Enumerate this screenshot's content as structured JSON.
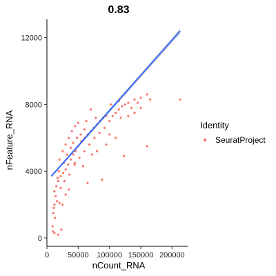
{
  "chart_data": {
    "type": "scatter",
    "title": "0.83",
    "xlabel": "nCount_RNA",
    "ylabel": "nFeature_RNA",
    "xlim": [
      0,
      225000
    ],
    "ylim": [
      -500,
      13100
    ],
    "x_ticks": [
      0,
      50000,
      100000,
      150000,
      200000
    ],
    "x_tick_labels": [
      "0",
      "50000",
      "100000",
      "150000",
      "200000"
    ],
    "y_ticks": [
      0,
      4000,
      8000,
      12000
    ],
    "y_tick_labels": [
      "0",
      "4000",
      "8000",
      "12000"
    ],
    "grid": false,
    "legend": {
      "title": "Identity",
      "placement": "right",
      "entries": [
        {
          "name": "SeuratProject",
          "color": "#F8766D"
        }
      ]
    },
    "point_color": "#F8766D",
    "fit_line": {
      "color": "#3366FF",
      "ribbon_color": "#999999",
      "points": [
        [
          7000,
          3700
        ],
        [
          213000,
          12400
        ]
      ]
    },
    "series": [
      {
        "name": "SeuratProject",
        "points": [
          [
            9000,
            700
          ],
          [
            10000,
            400
          ],
          [
            12000,
            300
          ],
          [
            18000,
            200
          ],
          [
            23000,
            500
          ],
          [
            10000,
            1500
          ],
          [
            12000,
            2000
          ],
          [
            14000,
            2500
          ],
          [
            11000,
            1800
          ],
          [
            13000,
            1200
          ],
          [
            16000,
            2200
          ],
          [
            20000,
            2100
          ],
          [
            25000,
            2000
          ],
          [
            30000,
            2600
          ],
          [
            35000,
            2900
          ],
          [
            12000,
            2800
          ],
          [
            15000,
            3100
          ],
          [
            18000,
            3400
          ],
          [
            22000,
            3700
          ],
          [
            26000,
            3900
          ],
          [
            30000,
            4100
          ],
          [
            34000,
            4400
          ],
          [
            38000,
            4700
          ],
          [
            42000,
            5000
          ],
          [
            46000,
            5200
          ],
          [
            50000,
            5500
          ],
          [
            55000,
            5800
          ],
          [
            60000,
            6000
          ],
          [
            65000,
            6200
          ],
          [
            70000,
            6400
          ],
          [
            75000,
            6600
          ],
          [
            80000,
            6800
          ],
          [
            85000,
            7000
          ],
          [
            90000,
            7200
          ],
          [
            95000,
            7300
          ],
          [
            20000,
            4700
          ],
          [
            25000,
            5200
          ],
          [
            30000,
            5600
          ],
          [
            35000,
            6000
          ],
          [
            40000,
            6400
          ],
          [
            45000,
            6700
          ],
          [
            50000,
            6900
          ],
          [
            28000,
            3400
          ],
          [
            36000,
            3800
          ],
          [
            44000,
            4400
          ],
          [
            52000,
            4800
          ],
          [
            60000,
            5200
          ],
          [
            68000,
            5600
          ],
          [
            76000,
            6000
          ],
          [
            84000,
            6300
          ],
          [
            92000,
            6600
          ],
          [
            100000,
            7000
          ],
          [
            105000,
            7300
          ],
          [
            110000,
            7500
          ],
          [
            115000,
            7700
          ],
          [
            120000,
            7900
          ],
          [
            125000,
            8000
          ],
          [
            130000,
            8100
          ],
          [
            140000,
            8300
          ],
          [
            150000,
            8400
          ],
          [
            160000,
            8600
          ],
          [
            165000,
            8300
          ],
          [
            213000,
            8300
          ],
          [
            150000,
            7800
          ],
          [
            140000,
            7500
          ],
          [
            123000,
            4900
          ],
          [
            160000,
            5500
          ],
          [
            88000,
            3500
          ],
          [
            65000,
            3300
          ],
          [
            45000,
            4500
          ],
          [
            58000,
            4300
          ],
          [
            72000,
            5000
          ],
          [
            100000,
            6200
          ],
          [
            110000,
            6000
          ],
          [
            95000,
            5600
          ],
          [
            80000,
            5200
          ],
          [
            63000,
            7000
          ],
          [
            70000,
            7700
          ],
          [
            78000,
            7200
          ],
          [
            102000,
            8000
          ],
          [
            115000,
            8200
          ],
          [
            130000,
            7300
          ],
          [
            135000,
            7800
          ],
          [
            145000,
            8100
          ],
          [
            118000,
            7200
          ],
          [
            60000,
            6500
          ],
          [
            48000,
            6000
          ],
          [
            54000,
            6200
          ],
          [
            32000,
            5000
          ],
          [
            38000,
            5400
          ],
          [
            42000,
            5700
          ],
          [
            27000,
            4500
          ],
          [
            19000,
            4000
          ],
          [
            17000,
            3600
          ],
          [
            22000,
            3000
          ]
        ]
      }
    ]
  }
}
